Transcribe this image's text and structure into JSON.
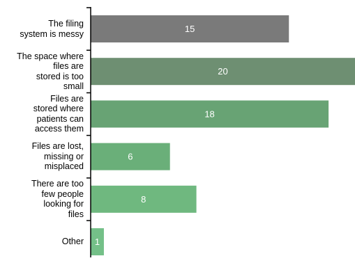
{
  "chart_data": {
    "type": "bar",
    "orientation": "horizontal",
    "categories": [
      [
        "The filing",
        "system is messy"
      ],
      [
        "The space where",
        "files are",
        "stored is too",
        "small"
      ],
      [
        "Files are",
        "stored where",
        "patients can",
        "access them"
      ],
      [
        "Files are lost,",
        "missing or",
        "misplaced"
      ],
      [
        "There are too",
        "few people",
        "looking for",
        "files"
      ],
      [
        "Other"
      ]
    ],
    "values": [
      15,
      20,
      18,
      6,
      8,
      1
    ],
    "data_labels": [
      "15",
      "20",
      "18",
      "6",
      "8",
      "1"
    ],
    "colors": [
      "#7a7a7a",
      "#6e8f72",
      "#68a374",
      "#6aaf79",
      "#6fb87f",
      "#74c088"
    ],
    "xlim": [
      0,
      20
    ],
    "title": "",
    "xlabel": "",
    "ylabel": "",
    "grid": false,
    "legend": "none"
  }
}
